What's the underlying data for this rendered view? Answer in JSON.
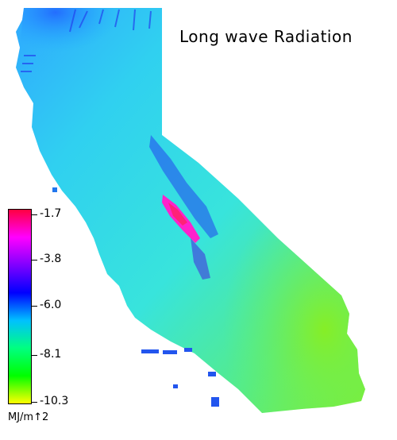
{
  "title": "Long wave Radiation",
  "legend": {
    "tick_labels": [
      "-1.7",
      "-3.8",
      "-6.0",
      "-8.1",
      "-10.3"
    ],
    "units": "MJ/m↑2",
    "colors": [
      "#ff0040",
      "#ff00ff",
      "#8000ff",
      "#0000ff",
      "#00c0ff",
      "#00ff80",
      "#00ff00",
      "#ffff00"
    ]
  },
  "map": {
    "region_shape": "state-outline",
    "palette": {
      "background_cyan": "#33ddee",
      "north_blue": "#3399ff",
      "desert_green": "#66ee44",
      "sierra_magenta": "#ff22cc",
      "deep_blue": "#2233ee"
    }
  }
}
